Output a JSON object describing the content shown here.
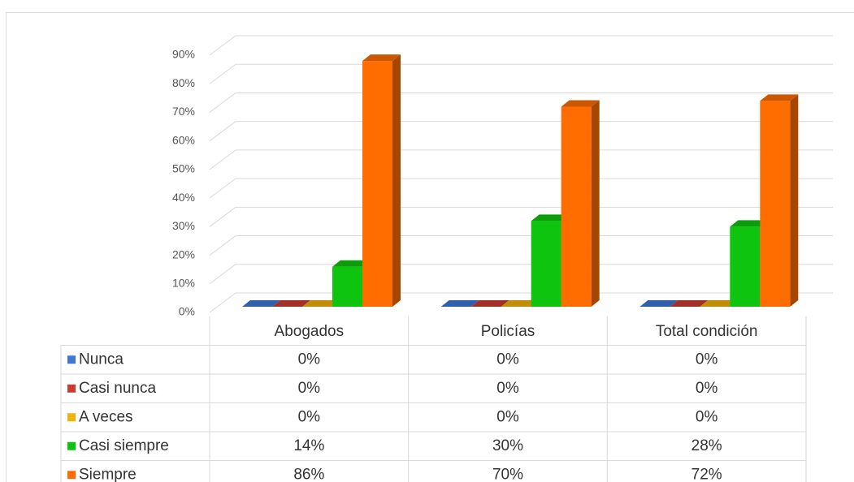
{
  "chart_data": {
    "type": "bar3d",
    "categories": [
      "Abogados",
      "Policías",
      "Total condición"
    ],
    "series": [
      {
        "name": "Nunca",
        "color": "#3c78d8",
        "values": [
          0,
          0,
          0
        ],
        "value_labels": [
          "0%",
          "0%",
          "0%"
        ]
      },
      {
        "name": "Casi nunca",
        "color": "#cc3b2f",
        "values": [
          0,
          0,
          0
        ],
        "value_labels": [
          "0%",
          "0%",
          "0%"
        ]
      },
      {
        "name": "A veces",
        "color": "#f1b20c",
        "values": [
          0,
          0,
          0
        ],
        "value_labels": [
          "0%",
          "0%",
          "0%"
        ]
      },
      {
        "name": "Casi siempre",
        "color": "#0ec40e",
        "values": [
          14,
          30,
          28
        ],
        "value_labels": [
          "14%",
          "30%",
          "28%"
        ]
      },
      {
        "name": "Siempre",
        "color": "#ff6d01",
        "values": [
          86,
          70,
          72
        ],
        "value_labels": [
          "86%",
          "70%",
          "72%"
        ]
      }
    ],
    "ylim": [
      0,
      90
    ],
    "yticks": [
      {
        "value": 0,
        "label": "0%"
      },
      {
        "value": 10,
        "label": "10%"
      },
      {
        "value": 20,
        "label": "20%"
      },
      {
        "value": 30,
        "label": "30%"
      },
      {
        "value": 40,
        "label": "40%"
      },
      {
        "value": 50,
        "label": "50%"
      },
      {
        "value": 60,
        "label": "60%"
      },
      {
        "value": 70,
        "label": "70%"
      },
      {
        "value": 80,
        "label": "80%"
      },
      {
        "value": 90,
        "label": "90%"
      }
    ],
    "grid": true
  }
}
